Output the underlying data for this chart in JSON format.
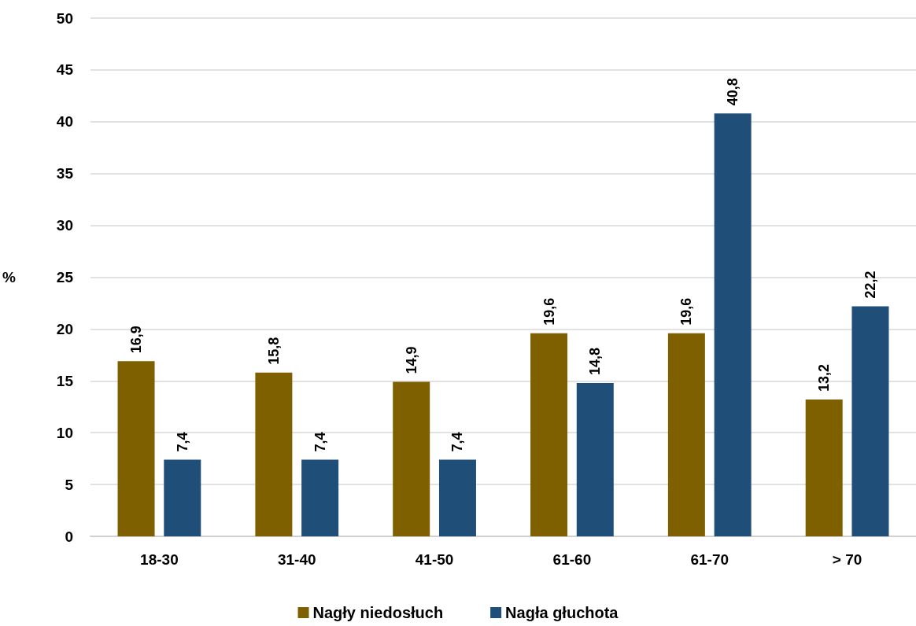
{
  "chart_data": {
    "type": "bar",
    "ylabel": "%",
    "categories": [
      "18-30",
      "31-40",
      "41-50",
      "61-60",
      "61-70",
      "> 70"
    ],
    "series": [
      {
        "name": "Nagły niedosłuch",
        "color": "#7f6000",
        "values": [
          16.9,
          15.8,
          14.9,
          19.6,
          19.6,
          13.2
        ],
        "value_labels": [
          "16,9",
          "15,8",
          "14,9",
          "19,6",
          "19,6",
          "13,2"
        ]
      },
      {
        "name": "Nagła głuchota",
        "color": "#1f4e79",
        "values": [
          7.4,
          7.4,
          7.4,
          14.8,
          40.8,
          22.2
        ],
        "value_labels": [
          "7,4",
          "7,4",
          "7,4",
          "14,8",
          "40,8",
          "22,2"
        ]
      }
    ],
    "ylim": [
      0,
      50
    ],
    "yticks": [
      0,
      5,
      10,
      15,
      20,
      25,
      30,
      35,
      40,
      45,
      50
    ],
    "grid": "y",
    "legend": "bottom"
  }
}
